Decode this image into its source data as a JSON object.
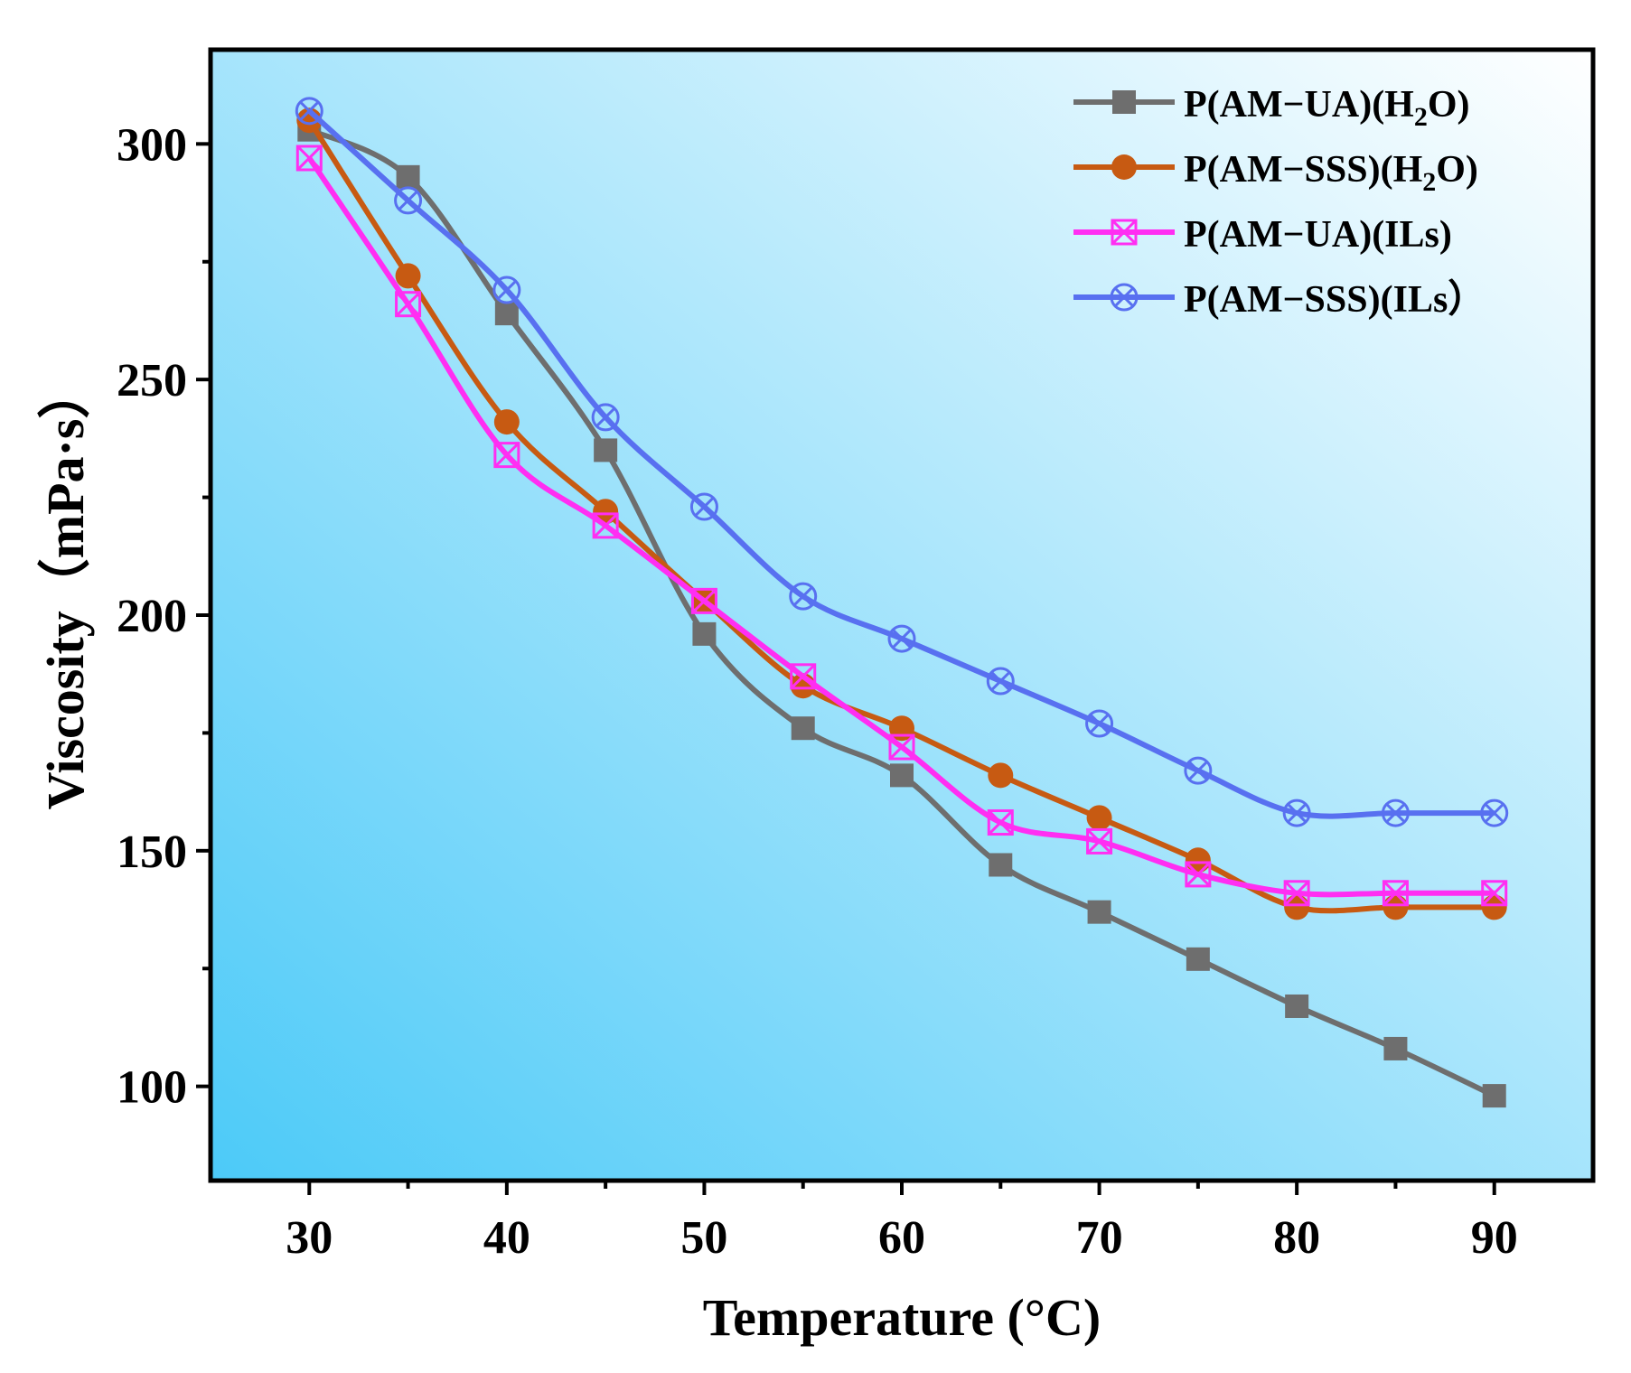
{
  "chart_data": {
    "type": "line",
    "title": "",
    "xlabel": "Temperature (°C)",
    "ylabel": "Viscosity（mPa·s）",
    "xlim": [
      25,
      95
    ],
    "ylim": [
      80,
      320
    ],
    "x_ticks": [
      30,
      40,
      50,
      60,
      70,
      80,
      90
    ],
    "y_ticks": [
      100,
      150,
      200,
      250,
      300
    ],
    "x_tick_labels": [
      "30",
      "40",
      "50",
      "60",
      "70",
      "80",
      "90"
    ],
    "y_tick_labels": [
      "100",
      "150",
      "200",
      "250",
      "300"
    ],
    "legend_position": "top-right",
    "background": {
      "from": "#4ccaf8",
      "to": "#ffffff"
    },
    "x": [
      30,
      35,
      40,
      45,
      50,
      55,
      60,
      65,
      70,
      75,
      80,
      85,
      90
    ],
    "series": [
      {
        "name": "P(AM−UA)(H",
        "name_sub": "2",
        "name_tail": "O)",
        "color": "#6e6e6e",
        "marker": "filled-square",
        "values": [
          303,
          293,
          264,
          235,
          196,
          176,
          166,
          147,
          137,
          127,
          117,
          108,
          98
        ]
      },
      {
        "name": "P(AM−SSS)(H",
        "name_sub": "2",
        "name_tail": "O)",
        "color": "#c75a12",
        "marker": "filled-circle",
        "values": [
          305,
          272,
          241,
          222,
          203,
          185,
          176,
          166,
          157,
          148,
          138,
          138,
          138
        ]
      },
      {
        "name": "P(AM−UA)(ILs)",
        "name_sub": "",
        "name_tail": "",
        "color": "#ff2ef2",
        "marker": "crossed-square",
        "values": [
          297,
          266,
          234,
          219,
          203,
          187,
          172,
          156,
          152,
          145,
          141,
          141,
          141
        ]
      },
      {
        "name": "P(AM−SSS)(ILs）",
        "name_sub": "",
        "name_tail": "",
        "color": "#5870f0",
        "marker": "crossed-circle",
        "values": [
          307,
          288,
          269,
          242,
          223,
          204,
          195,
          186,
          177,
          167,
          158,
          158,
          158
        ]
      }
    ]
  }
}
